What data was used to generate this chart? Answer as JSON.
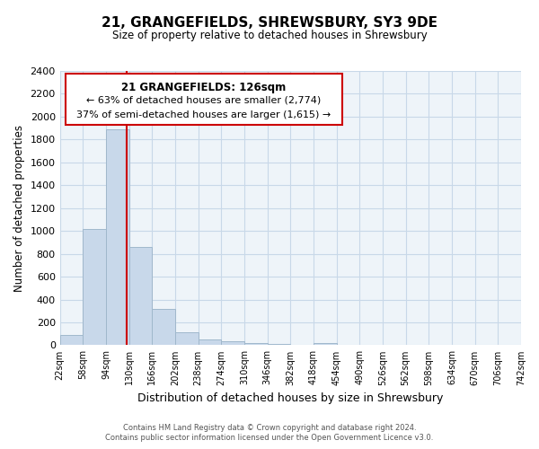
{
  "title": "21, GRANGEFIELDS, SHREWSBURY, SY3 9DE",
  "subtitle": "Size of property relative to detached houses in Shrewsbury",
  "xlabel": "Distribution of detached houses by size in Shrewsbury",
  "ylabel": "Number of detached properties",
  "bar_edges": [
    22,
    58,
    94,
    130,
    166,
    202,
    238,
    274,
    310,
    346,
    382,
    418,
    454,
    490,
    526,
    562,
    598,
    634,
    670,
    706,
    742
  ],
  "bar_heights": [
    90,
    1020,
    1890,
    860,
    320,
    115,
    50,
    35,
    20,
    10,
    5,
    20,
    0,
    0,
    0,
    0,
    0,
    0,
    0,
    0
  ],
  "bar_color": "#c8d8ea",
  "bar_edge_color": "#a0b8cc",
  "property_line_x": 126,
  "property_line_color": "#cc0000",
  "ylim": [
    0,
    2400
  ],
  "yticks": [
    0,
    200,
    400,
    600,
    800,
    1000,
    1200,
    1400,
    1600,
    1800,
    2000,
    2200,
    2400
  ],
  "annotation_title": "21 GRANGEFIELDS: 126sqm",
  "annotation_line1": "← 63% of detached houses are smaller (2,774)",
  "annotation_line2": "37% of semi-detached houses are larger (1,615) →",
  "footer_line1": "Contains HM Land Registry data © Crown copyright and database right 2024.",
  "footer_line2": "Contains public sector information licensed under the Open Government Licence v3.0.",
  "tick_labels": [
    "22sqm",
    "58sqm",
    "94sqm",
    "130sqm",
    "166sqm",
    "202sqm",
    "238sqm",
    "274sqm",
    "310sqm",
    "346sqm",
    "382sqm",
    "418sqm",
    "454sqm",
    "490sqm",
    "526sqm",
    "562sqm",
    "598sqm",
    "634sqm",
    "670sqm",
    "706sqm",
    "742sqm"
  ],
  "grid_color": "#c8d8e8",
  "plot_bg_color": "#eef4f9"
}
